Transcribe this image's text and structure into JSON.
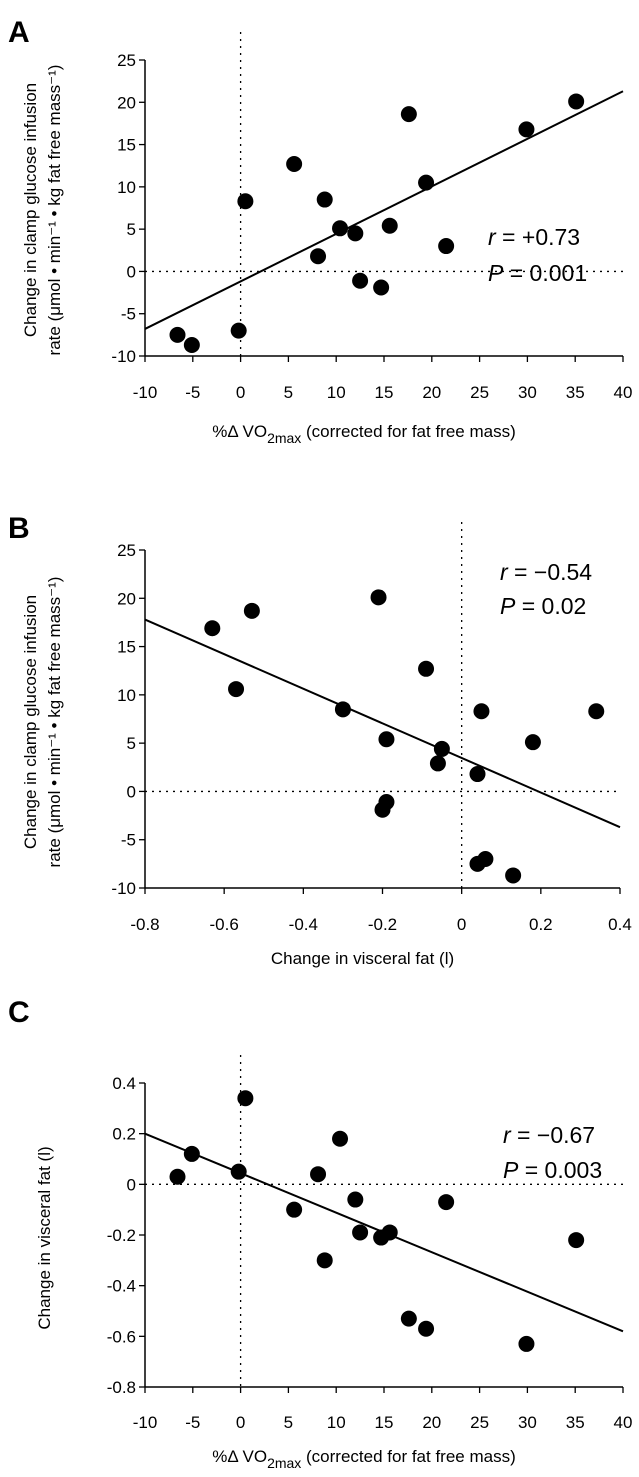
{
  "chart_data": [
    {
      "type": "scatter",
      "panel_label": "A",
      "xlabel": "%Δ VO2max (corrected for fat free mass)",
      "xlabel_parts": {
        "pre": "%Δ VO",
        "sub": "2max",
        "post": " (corrected for fat free mass)"
      },
      "ylabel_line1": "Change in clamp glucose infusion",
      "ylabel_line2": "rate (μmol • min⁻¹ • kg fat free mass⁻¹)",
      "xlim": [
        -10,
        40
      ],
      "ylim": [
        -10,
        25
      ],
      "xticks": [
        -10,
        -5,
        0,
        5,
        10,
        15,
        20,
        25,
        30,
        35,
        40
      ],
      "yticks": [
        -10,
        -5,
        0,
        5,
        10,
        15,
        20,
        25
      ],
      "stat_r_var": "r",
      "stat_r": " = +0.73",
      "stat_p_var": "P",
      "stat_p": " = 0.001",
      "points": [
        {
          "x": -6.6,
          "y": -7.5
        },
        {
          "x": -5.1,
          "y": -8.7
        },
        {
          "x": -0.2,
          "y": -7.0
        },
        {
          "x": 0.5,
          "y": 8.3
        },
        {
          "x": 5.6,
          "y": 12.7
        },
        {
          "x": 8.1,
          "y": 1.8
        },
        {
          "x": 8.8,
          "y": 8.5
        },
        {
          "x": 10.4,
          "y": 5.1
        },
        {
          "x": 12.0,
          "y": 4.5
        },
        {
          "x": 12.5,
          "y": -1.1
        },
        {
          "x": 14.7,
          "y": -1.9
        },
        {
          "x": 15.6,
          "y": 5.4
        },
        {
          "x": 17.6,
          "y": 18.6
        },
        {
          "x": 19.4,
          "y": 10.5
        },
        {
          "x": 21.5,
          "y": 3.0
        },
        {
          "x": 29.9,
          "y": 16.8
        },
        {
          "x": 35.1,
          "y": 20.1
        }
      ],
      "fit_line": {
        "x": [
          -10,
          40
        ],
        "y": [
          -6.8,
          21.3
        ]
      },
      "ref_x": 0,
      "ref_y": 0
    },
    {
      "type": "scatter",
      "panel_label": "B",
      "xlabel": "Change in visceral fat (l)",
      "ylabel_line1": "Change in clamp glucose infusion",
      "ylabel_line2": "rate (μmol • min⁻¹ • kg fat free mass⁻¹)",
      "xlim": [
        -0.8,
        0.4
      ],
      "ylim": [
        -10,
        25
      ],
      "xticks": [
        -0.8,
        -0.6,
        -0.4,
        -0.2,
        0,
        0.2,
        0.4
      ],
      "yticks": [
        -10,
        -5,
        0,
        5,
        10,
        15,
        20,
        25
      ],
      "stat_r_var": "r",
      "stat_r": " = −0.54",
      "stat_p_var": "P",
      "stat_p": " = 0.02",
      "points": [
        {
          "x": -0.63,
          "y": 16.9
        },
        {
          "x": -0.53,
          "y": 18.7
        },
        {
          "x": -0.57,
          "y": 10.6
        },
        {
          "x": -0.21,
          "y": 20.1
        },
        {
          "x": -0.09,
          "y": 12.7
        },
        {
          "x": -0.3,
          "y": 8.5
        },
        {
          "x": -0.19,
          "y": 5.4
        },
        {
          "x": -0.05,
          "y": 4.4
        },
        {
          "x": -0.06,
          "y": 2.9
        },
        {
          "x": -0.19,
          "y": -1.1
        },
        {
          "x": -0.2,
          "y": -1.9
        },
        {
          "x": 0.05,
          "y": 8.3
        },
        {
          "x": 0.04,
          "y": 1.8
        },
        {
          "x": 0.18,
          "y": 5.1
        },
        {
          "x": 0.34,
          "y": 8.3
        },
        {
          "x": 0.04,
          "y": -7.5
        },
        {
          "x": 0.06,
          "y": -7.0
        },
        {
          "x": 0.13,
          "y": -8.7
        }
      ],
      "fit_line": {
        "x": [
          -0.8,
          0.4
        ],
        "y": [
          17.8,
          -3.7
        ]
      },
      "ref_x": 0,
      "ref_y": 0
    },
    {
      "type": "scatter",
      "panel_label": "C",
      "xlabel": "%Δ VO2max (corrected for fat free mass)",
      "xlabel_parts": {
        "pre": "%Δ VO",
        "sub": "2max",
        "post": " (corrected for fat free mass)"
      },
      "ylabel_line1": "Change in visceral fat (l)",
      "xlim": [
        -10,
        40
      ],
      "ylim": [
        -0.8,
        0.4
      ],
      "xticks": [
        -10,
        -5,
        0,
        5,
        10,
        15,
        20,
        25,
        30,
        35,
        40
      ],
      "yticks": [
        -0.8,
        -0.6,
        -0.4,
        -0.2,
        0,
        0.2,
        0.4
      ],
      "stat_r_var": "r",
      "stat_r": " = −0.67",
      "stat_p_var": "P",
      "stat_p": " = 0.003",
      "points": [
        {
          "x": -6.6,
          "y": 0.03
        },
        {
          "x": -5.1,
          "y": 0.12
        },
        {
          "x": -0.2,
          "y": 0.05
        },
        {
          "x": 0.5,
          "y": 0.34
        },
        {
          "x": 5.6,
          "y": -0.1
        },
        {
          "x": 8.1,
          "y": 0.04
        },
        {
          "x": 8.8,
          "y": -0.3
        },
        {
          "x": 10.4,
          "y": 0.18
        },
        {
          "x": 12.0,
          "y": -0.06
        },
        {
          "x": 12.5,
          "y": -0.19
        },
        {
          "x": 14.7,
          "y": -0.21
        },
        {
          "x": 15.6,
          "y": -0.19
        },
        {
          "x": 17.6,
          "y": -0.53
        },
        {
          "x": 19.4,
          "y": -0.57
        },
        {
          "x": 21.5,
          "y": -0.07
        },
        {
          "x": 29.9,
          "y": -0.63
        },
        {
          "x": 35.1,
          "y": -0.22
        }
      ],
      "fit_line": {
        "x": [
          -10,
          40
        ],
        "y": [
          0.2,
          -0.58
        ]
      },
      "ref_x": 0,
      "ref_y": 0
    }
  ]
}
